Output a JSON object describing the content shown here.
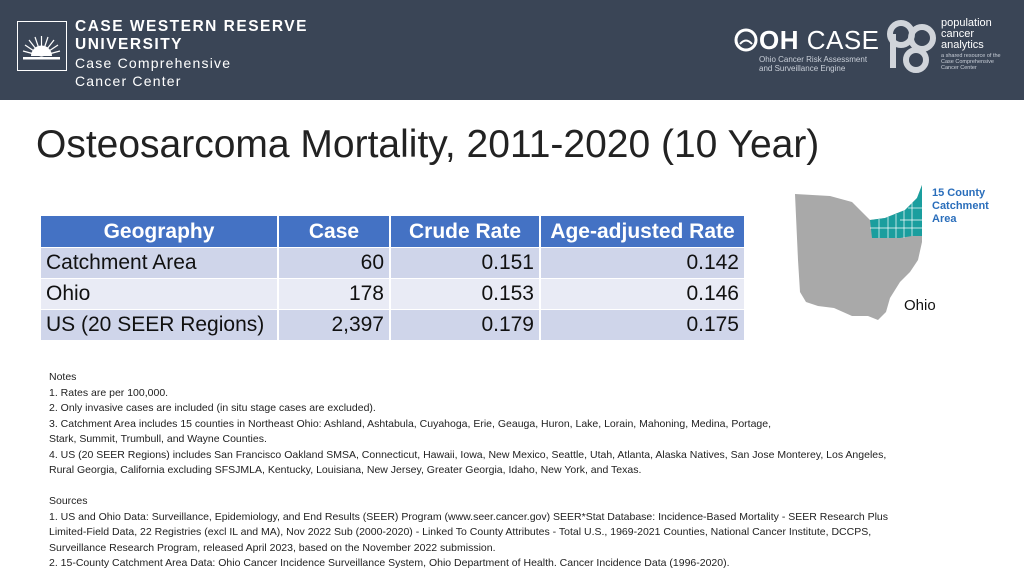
{
  "header": {
    "cwru": {
      "line1": "CASE WESTERN RESERVE",
      "line2": "UNIVERSITY",
      "line3": "Case Comprehensive",
      "line4": "Cancer Center"
    },
    "ohcase": {
      "title_bold": "OH",
      "title_thin": " CASE",
      "sub1": "Ohio Cancer Risk Assessment",
      "sub2": "and Surveillance Engine"
    },
    "pca": {
      "line1": "population",
      "line2": "cancer",
      "line3": "analytics",
      "sub1": "a shared resource of the",
      "sub2": "Case Comprehensive",
      "sub3": "Cancer Center"
    }
  },
  "title": "Osteosarcoma Mortality, 2011-2020 (10 Year)",
  "table": {
    "headers": [
      "Geography",
      "Case",
      "Crude Rate",
      "Age-adjusted Rate"
    ],
    "rows": [
      [
        "Catchment Area",
        "60",
        "0.151",
        "0.142"
      ],
      [
        "Ohio",
        "178",
        "0.153",
        "0.146"
      ],
      [
        "US (20 SEER Regions)",
        "2,397",
        "0.179",
        "0.175"
      ]
    ]
  },
  "map": {
    "legend_line1": "15 County",
    "legend_line2": "Catchment",
    "legend_line3": "Area",
    "label": "Ohio",
    "colors": {
      "state": "#a9a9a9",
      "catchment": "#1a9e9e"
    }
  },
  "notes": {
    "heading": "Notes",
    "n1": "1. Rates are per 100,000.",
    "n2": "2. Only invasive cases are included (in situ stage cases are excluded).",
    "n3a": "3. Catchment Area includes 15 counties in Northeast Ohio: Ashland, Ashtabula, Cuyahoga, Erie, Geauga, Huron, Lake, Lorain, Mahoning, Medina, Portage,",
    "n3b": "Stark, Summit, Trumbull, and Wayne Counties.",
    "n4a": "4. US (20 SEER Regions) includes San Francisco Oakland SMSA, Connecticut, Hawaii, Iowa, New Mexico, Seattle, Utah, Atlanta, Alaska Natives, San Jose Monterey, Los Angeles,",
    "n4b": "Rural Georgia, California excluding SFSJMLA, Kentucky, Louisiana, New Jersey, Greater Georgia, Idaho, New York, and Texas."
  },
  "sources": {
    "heading": "Sources",
    "s1a": "1. US and Ohio Data: Surveillance, Epidemiology, and End Results (SEER) Program (www.seer.cancer.gov) SEER*Stat Database: Incidence-Based Mortality - SEER Research Plus",
    "s1b": "Limited-Field Data, 22 Registries (excl IL and MA), Nov 2022 Sub (2000-2020) - Linked To County Attributes - Total U.S., 1969-2021 Counties, National Cancer Institute, DCCPS,",
    "s1c": "Surveillance Research Program, released April 2023, based on the November 2022 submission.",
    "s2": "2. 15-County Catchment Area Data: Ohio Cancer Incidence Surveillance System, Ohio Department of Health. Cancer Incidence Data (1996-2020)."
  }
}
